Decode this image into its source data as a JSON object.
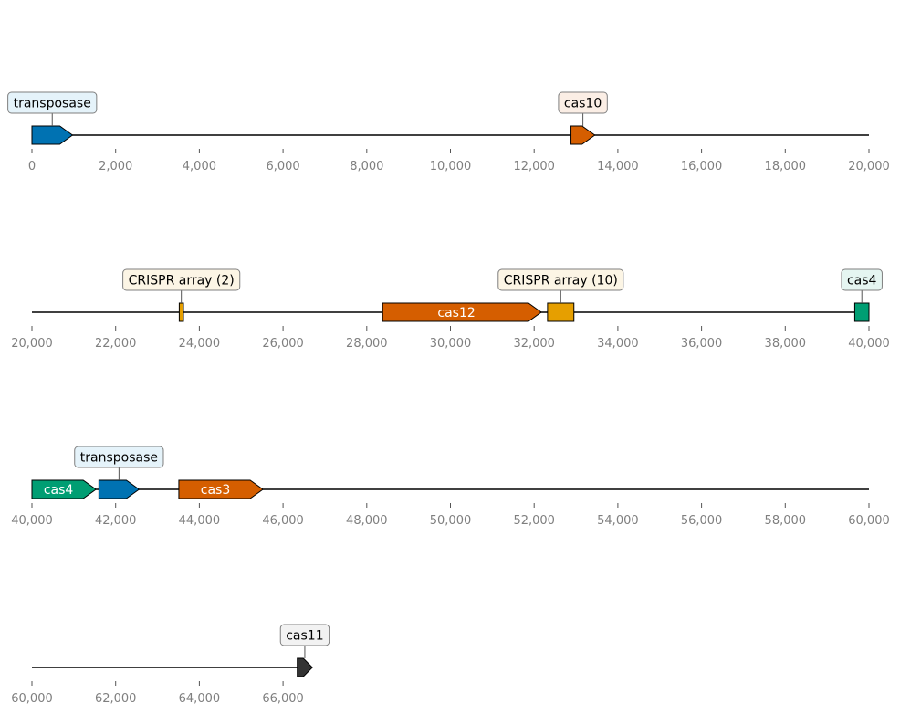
{
  "chart_data": {
    "type": "genomic-map",
    "tracks": [
      {
        "range": [
          0,
          20000
        ],
        "ticks": [
          {
            "value": 0,
            "label": "0"
          },
          {
            "value": 2000,
            "label": "2,000"
          },
          {
            "value": 4000,
            "label": "4,000"
          },
          {
            "value": 6000,
            "label": "6,000"
          },
          {
            "value": 8000,
            "label": "8,000"
          },
          {
            "value": 10000,
            "label": "10,000"
          },
          {
            "value": 12000,
            "label": "12,000"
          },
          {
            "value": 14000,
            "label": "14,000"
          },
          {
            "value": 16000,
            "label": "16,000"
          },
          {
            "value": 18000,
            "label": "18,000"
          },
          {
            "value": 20000,
            "label": "20,000"
          }
        ],
        "features": [
          {
            "start": 0,
            "end": 970,
            "strand": "+",
            "color": "#0072b2",
            "label": "transposase",
            "label_style": "callout",
            "box_color": "#e5f3fa"
          },
          {
            "start": 12880,
            "end": 13450,
            "strand": "+",
            "color": "#d55e00",
            "label": "cas10",
            "label_style": "callout",
            "box_color": "#fbeee5"
          }
        ]
      },
      {
        "range": [
          20000,
          40000
        ],
        "ticks": [
          {
            "value": 20000,
            "label": "20,000"
          },
          {
            "value": 22000,
            "label": "22,000"
          },
          {
            "value": 24000,
            "label": "24,000"
          },
          {
            "value": 26000,
            "label": "26,000"
          },
          {
            "value": 28000,
            "label": "28,000"
          },
          {
            "value": 30000,
            "label": "30,000"
          },
          {
            "value": 32000,
            "label": "32,000"
          },
          {
            "value": 34000,
            "label": "34,000"
          },
          {
            "value": 36000,
            "label": "36,000"
          },
          {
            "value": 38000,
            "label": "38,000"
          },
          {
            "value": 40000,
            "label": "40,000"
          }
        ],
        "features": [
          {
            "start": 23520,
            "end": 23620,
            "strand": "none",
            "color": "#e69f00",
            "label": "CRISPR array (2)",
            "label_style": "callout",
            "box_color": "#fcf5e5"
          },
          {
            "start": 28380,
            "end": 32170,
            "strand": "+",
            "color": "#d55e00",
            "label": "cas12",
            "label_style": "inside"
          },
          {
            "start": 32320,
            "end": 32950,
            "strand": "none",
            "color": "#e69f00",
            "label": "CRISPR array (10)",
            "label_style": "callout",
            "box_color": "#fcf5e5"
          },
          {
            "start": 39660,
            "end": 40000,
            "strand": "none",
            "color": "#009e73",
            "label": "cas4",
            "label_style": "callout",
            "box_color": "#e5f5f1"
          }
        ]
      },
      {
        "range": [
          40000,
          60000
        ],
        "ticks": [
          {
            "value": 40000,
            "label": "40,000"
          },
          {
            "value": 42000,
            "label": "42,000"
          },
          {
            "value": 44000,
            "label": "44,000"
          },
          {
            "value": 46000,
            "label": "46,000"
          },
          {
            "value": 48000,
            "label": "48,000"
          },
          {
            "value": 50000,
            "label": "50,000"
          },
          {
            "value": 52000,
            "label": "52,000"
          },
          {
            "value": 54000,
            "label": "54,000"
          },
          {
            "value": 56000,
            "label": "56,000"
          },
          {
            "value": 58000,
            "label": "58,000"
          },
          {
            "value": 60000,
            "label": "60,000"
          }
        ],
        "features": [
          {
            "start": 40000,
            "end": 41530,
            "strand": "+",
            "color": "#009e73",
            "label": "cas4",
            "label_style": "inside"
          },
          {
            "start": 41600,
            "end": 42560,
            "strand": "+",
            "color": "#0072b2",
            "label": "transposase",
            "label_style": "callout",
            "box_color": "#e5f3fa"
          },
          {
            "start": 43510,
            "end": 45520,
            "strand": "+",
            "color": "#d55e00",
            "label": "cas3",
            "label_style": "inside"
          }
        ]
      },
      {
        "range": [
          60000,
          80000
        ],
        "axis_end": 66500,
        "ticks": [
          {
            "value": 60000,
            "label": "60,000"
          },
          {
            "value": 62000,
            "label": "62,000"
          },
          {
            "value": 64000,
            "label": "64,000"
          },
          {
            "value": 66000,
            "label": "66,000"
          }
        ],
        "features": [
          {
            "start": 66340,
            "end": 66700,
            "strand": "+",
            "color": "#333333",
            "label": "cas11",
            "label_style": "callout",
            "box_color": "#f2f2f2"
          }
        ]
      }
    ]
  }
}
